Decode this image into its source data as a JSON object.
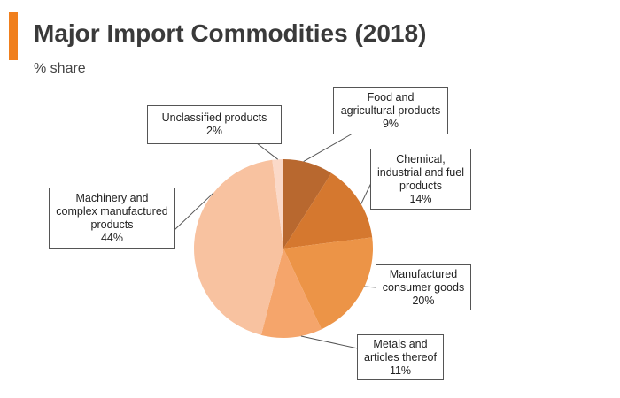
{
  "header": {
    "title": "Major Import Commodities (2018)",
    "subtitle": "% share",
    "accent_color": "#f07f1d"
  },
  "chart_data": {
    "type": "pie",
    "title": "Major Import Commodities (2018)",
    "subtitle": "% share",
    "start_angle_deg": 0,
    "direction": "clockwise",
    "slices": [
      {
        "label": "Food and agricultural products",
        "lines": [
          "Food and",
          "agricultural products"
        ],
        "value": 9,
        "value_text": "9%",
        "color": "#b8682f"
      },
      {
        "label": "Chemical, industrial and fuel products",
        "lines": [
          "Chemical,",
          "industrial and fuel",
          "products"
        ],
        "value": 14,
        "value_text": "14%",
        "color": "#d5782f"
      },
      {
        "label": "Manufactured consumer goods",
        "lines": [
          "Manufactured",
          "consumer goods"
        ],
        "value": 20,
        "value_text": "20%",
        "color": "#ec9447"
      },
      {
        "label": "Metals and articles thereof",
        "lines": [
          "Metals and",
          "articles thereof"
        ],
        "value": 11,
        "value_text": "11%",
        "color": "#f5a56b"
      },
      {
        "label": "Machinery and complex manufactured products",
        "lines": [
          "Machinery and",
          "complex manufactured",
          "products"
        ],
        "value": 44,
        "value_text": "44%",
        "color": "#f8c2a0"
      },
      {
        "label": "Unclassified products",
        "lines": [
          "Unclassified products"
        ],
        "value": 2,
        "value_text": "2%",
        "color": "#fbd9c8"
      }
    ]
  }
}
